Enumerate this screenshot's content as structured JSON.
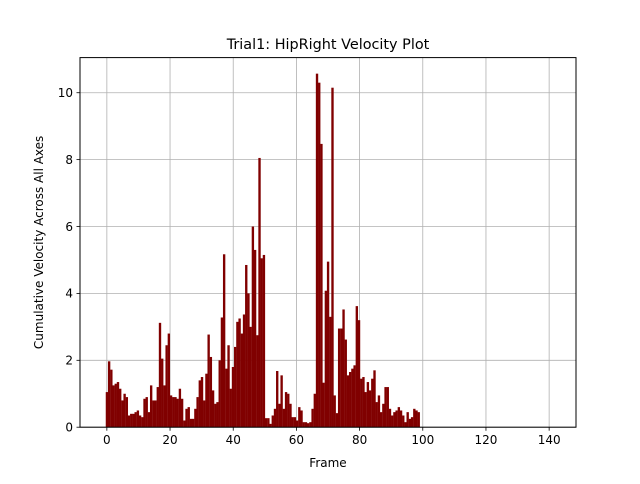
{
  "chart_data": {
    "type": "bar",
    "title": "Trial1: HipRight Velocity Plot",
    "xlabel": "Frame",
    "ylabel": "Cumulative Velocity Across All Axes",
    "xlim": [
      -8.5,
      148.5
    ],
    "ylim": [
      0,
      11.05
    ],
    "xticks": [
      0,
      20,
      40,
      60,
      80,
      100,
      120,
      140
    ],
    "yticks": [
      0,
      2,
      4,
      6,
      8,
      10
    ],
    "grid": true,
    "bar_color": "#800000",
    "x_start": 0,
    "x_step": 0.7,
    "values": [
      1.05,
      1.97,
      1.72,
      1.25,
      1.3,
      1.35,
      1.15,
      0.8,
      1.0,
      0.9,
      0.35,
      0.4,
      0.4,
      0.45,
      0.5,
      0.35,
      0.3,
      0.85,
      0.9,
      0.45,
      1.25,
      0.8,
      0.8,
      1.2,
      3.12,
      2.05,
      1.25,
      2.45,
      2.8,
      0.95,
      0.9,
      0.9,
      0.85,
      1.15,
      0.85,
      0.2,
      0.55,
      0.6,
      0.25,
      0.25,
      0.55,
      0.9,
      1.4,
      1.5,
      0.8,
      1.6,
      2.77,
      2.1,
      1.1,
      0.7,
      0.75,
      2.0,
      3.28,
      5.17,
      1.75,
      2.45,
      1.15,
      1.8,
      2.4,
      3.15,
      3.25,
      2.8,
      3.37,
      4.85,
      4.0,
      3.0,
      6.0,
      5.3,
      2.75,
      8.05,
      5.05,
      5.15,
      0.27,
      0.27,
      0.1,
      0.35,
      0.55,
      1.68,
      0.7,
      1.55,
      0.55,
      1.05,
      1.0,
      0.7,
      0.3,
      0.3,
      0.2,
      0.6,
      0.5,
      0.15,
      0.15,
      0.12,
      0.15,
      0.55,
      1.0,
      10.57,
      10.3,
      8.47,
      1.33,
      4.08,
      4.95,
      3.3,
      10.15,
      0.95,
      0.42,
      2.95,
      2.95,
      3.52,
      2.62,
      1.55,
      1.65,
      1.75,
      1.85,
      3.62,
      3.2,
      1.45,
      1.5,
      1.05,
      1.35,
      1.1,
      1.45,
      1.7,
      0.75,
      0.95,
      0.45,
      0.7,
      1.2,
      1.2,
      0.55,
      0.35,
      0.45,
      0.5,
      0.6,
      0.5,
      0.35,
      0.15,
      0.45,
      0.25,
      0.3,
      0.55,
      0.5,
      0.45
    ]
  }
}
